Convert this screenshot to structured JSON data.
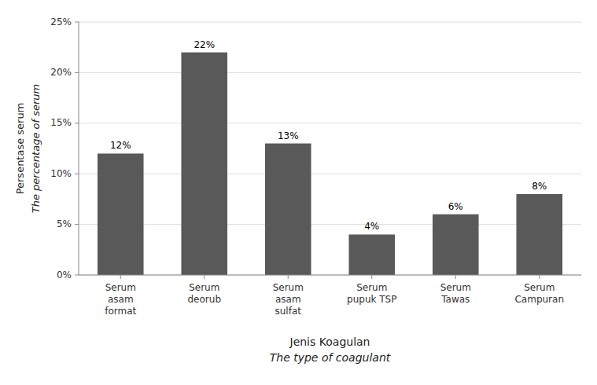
{
  "chart_data": {
    "type": "bar",
    "categories": [
      "Serum\nasam\nformat",
      "Serum\ndeorub",
      "Serum\nasam\nsulfat",
      "Serum\npupuk TSP",
      "Serum\nTawas",
      "Serum\nCampuran"
    ],
    "values": [
      12,
      22,
      13,
      4,
      6,
      8
    ],
    "value_labels": [
      "12%",
      "22%",
      "13%",
      "4%",
      "6%",
      "8%"
    ],
    "data_labels": true,
    "color": "#595959",
    "ylabel": [
      "Persentase serum",
      "The percentage of serum"
    ],
    "xlabel": [
      "Jenis Koagulan",
      "The type of coagulant"
    ],
    "ylim": [
      0,
      25
    ],
    "yticks": [
      {
        "value": 0,
        "label": "0%"
      },
      {
        "value": 5,
        "label": "5%"
      },
      {
        "value": 10,
        "label": "10%"
      },
      {
        "value": 15,
        "label": "15%"
      },
      {
        "value": 20,
        "label": "20%"
      },
      {
        "value": 25,
        "label": "25%"
      }
    ],
    "grid": true
  }
}
